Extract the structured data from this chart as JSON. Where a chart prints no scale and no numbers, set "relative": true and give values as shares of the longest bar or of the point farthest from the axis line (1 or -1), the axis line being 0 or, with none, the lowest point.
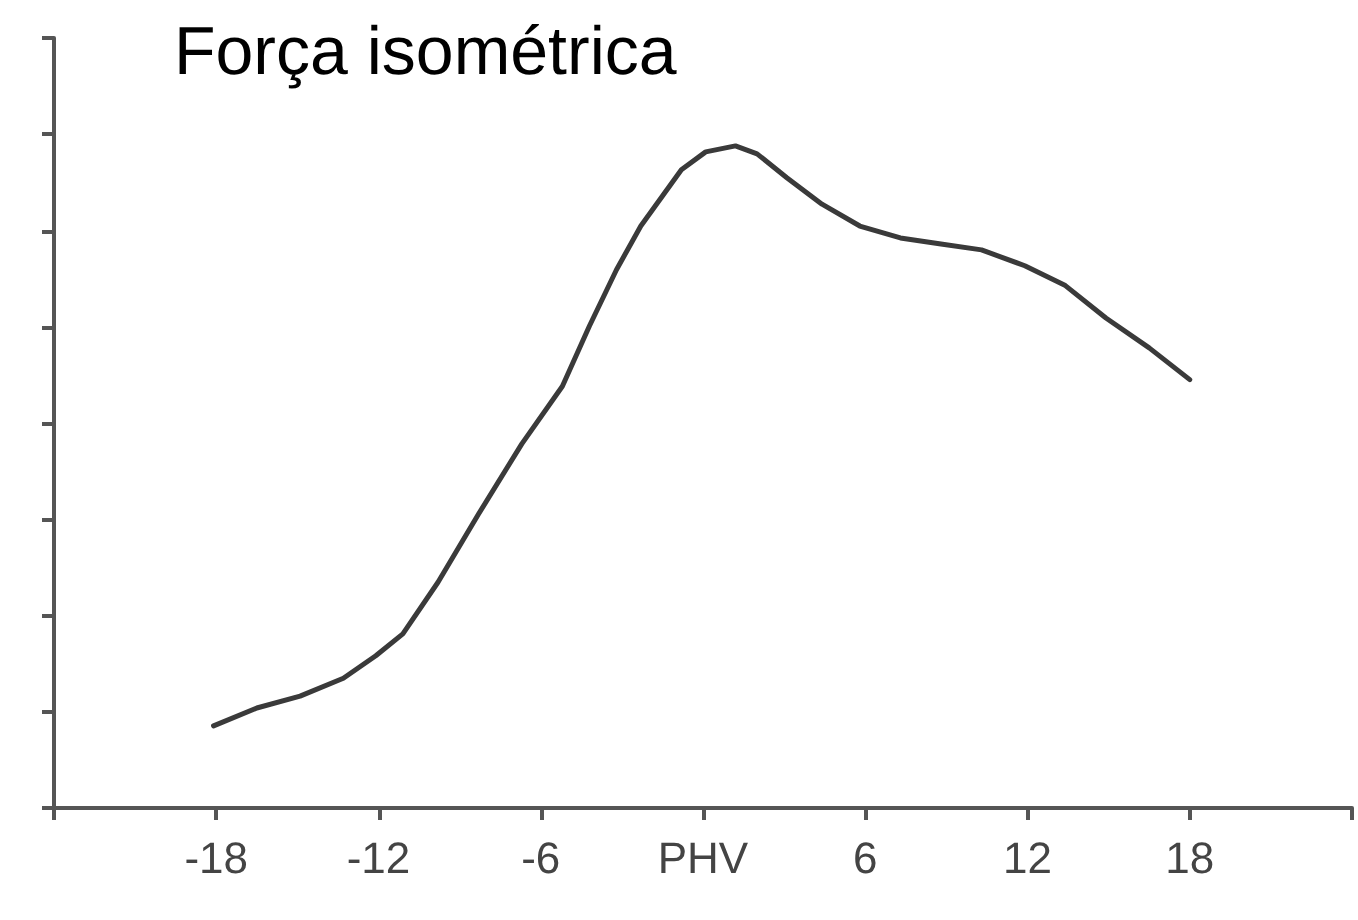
{
  "chart_data": {
    "type": "line",
    "title": "Força isométrica",
    "relative": true,
    "color": "#3a3a3a",
    "marker": "none",
    "xlim": [
      -24,
      24
    ],
    "xticks": [
      {
        "value": -24,
        "label": null
      },
      -18,
      -12,
      -6,
      {
        "value": 0,
        "label": "PHV"
      },
      6,
      12,
      18,
      {
        "value": 24,
        "label": null
      }
    ],
    "x": [
      -18.1,
      -16.5,
      -14.9,
      -13.3,
      -12.1,
      -11.1,
      -9.8,
      -8.3,
      -6.7,
      -5.2,
      -4.2,
      -3.2,
      -2.3,
      -0.8,
      0.1,
      1.2,
      2.0,
      3.1,
      4.4,
      5.8,
      7.3,
      8.8,
      10.3,
      11.9,
      13.4,
      14.9,
      16.5,
      18.0
    ],
    "values": [
      0.124,
      0.151,
      0.169,
      0.196,
      0.23,
      0.263,
      0.341,
      0.444,
      0.55,
      0.637,
      0.728,
      0.813,
      0.879,
      0.964,
      0.991,
      1.0,
      0.988,
      0.952,
      0.912,
      0.879,
      0.861,
      0.852,
      0.843,
      0.819,
      0.789,
      0.74,
      0.695,
      0.647
    ]
  }
}
